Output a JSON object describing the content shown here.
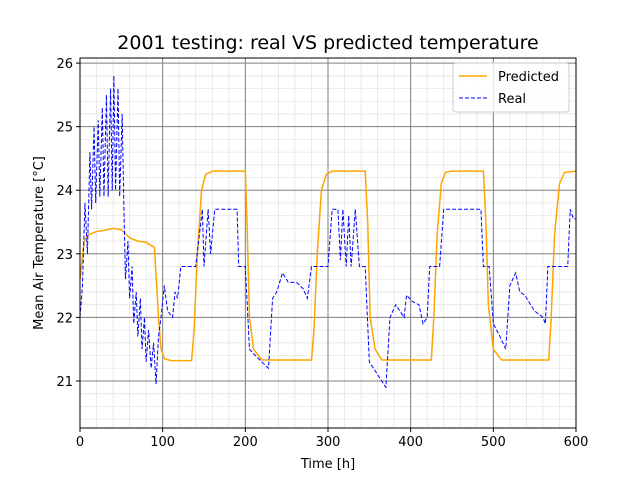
{
  "chart_data": {
    "type": "line",
    "title": "2001 testing: real VS predicted temperature",
    "x_label": "Time [h]",
    "y_label": "Mean Air Temperature [°C]",
    "xlim": [
      0,
      600
    ],
    "ylim": [
      20.26,
      26.08
    ],
    "xticks": [
      0,
      100,
      200,
      300,
      400,
      500,
      600
    ],
    "yticks": [
      21,
      22,
      23,
      24,
      25,
      26
    ],
    "grid": true,
    "minor_grid": true,
    "legend": "upper right",
    "series": [
      {
        "name": "Predicted",
        "color": "#ffa500",
        "dash": "solid",
        "x": [
          0,
          5,
          10,
          20,
          30,
          40,
          50,
          60,
          70,
          80,
          90,
          95,
          98,
          102,
          110,
          135,
          138,
          142,
          147,
          152,
          160,
          200,
          202,
          205,
          210,
          220,
          280,
          283,
          287,
          292,
          298,
          305,
          345,
          348,
          351,
          357,
          365,
          425,
          428,
          432,
          437,
          442,
          450,
          488,
          491,
          494,
          500,
          510,
          567,
          570,
          574,
          580,
          586,
          600
        ],
        "values": [
          22.6,
          23.2,
          23.3,
          23.35,
          23.37,
          23.4,
          23.38,
          23.25,
          23.2,
          23.18,
          23.1,
          22.0,
          21.5,
          21.35,
          21.32,
          21.32,
          21.8,
          23.0,
          24.0,
          24.25,
          24.3,
          24.3,
          23.5,
          22.0,
          21.5,
          21.33,
          21.33,
          21.8,
          23.0,
          24.0,
          24.25,
          24.3,
          24.3,
          23.5,
          22.0,
          21.5,
          21.33,
          21.33,
          22.0,
          23.3,
          24.1,
          24.28,
          24.3,
          24.3,
          23.5,
          22.2,
          21.5,
          21.33,
          21.33,
          22.0,
          23.3,
          24.1,
          24.28,
          24.3
        ]
      },
      {
        "name": "Real",
        "color": "#0000ff",
        "dash": "dashed",
        "x": [
          0,
          3,
          6,
          9,
          12,
          14,
          17,
          19,
          22,
          24,
          27,
          29,
          32,
          34,
          37,
          39,
          41,
          43,
          46,
          48,
          51,
          53,
          55,
          58,
          60,
          63,
          65,
          68,
          70,
          73,
          75,
          78,
          80,
          83,
          86,
          89,
          92,
          95,
          98,
          102,
          106,
          112,
          115,
          118,
          122,
          140,
          148,
          150,
          155,
          158,
          163,
          190,
          192,
          200,
          205,
          212,
          220,
          228,
          233,
          238,
          245,
          252,
          262,
          270,
          275,
          280,
          300,
          305,
          312,
          315,
          318,
          322,
          325,
          328,
          333,
          338,
          345,
          350,
          360,
          370,
          375,
          382,
          392,
          395,
          402,
          410,
          415,
          420,
          423,
          435,
          440,
          485,
          488,
          495,
          500,
          508,
          515,
          520,
          527,
          532,
          538,
          545,
          550,
          560,
          563,
          566,
          590,
          593,
          597,
          600
        ],
        "values": [
          22.0,
          22.5,
          23.8,
          23.0,
          24.6,
          23.7,
          25.0,
          23.8,
          25.1,
          23.9,
          25.3,
          23.9,
          25.5,
          23.9,
          25.6,
          24.0,
          25.8,
          24.0,
          25.6,
          23.9,
          25.2,
          23.8,
          22.6,
          23.2,
          22.3,
          22.8,
          21.9,
          22.4,
          21.7,
          22.3,
          21.5,
          22.0,
          21.3,
          21.8,
          21.2,
          21.6,
          20.95,
          21.7,
          22.0,
          22.5,
          22.1,
          22.0,
          22.4,
          22.3,
          22.8,
          22.8,
          23.7,
          22.8,
          23.7,
          23.0,
          23.7,
          23.7,
          22.8,
          22.8,
          21.5,
          21.4,
          21.3,
          21.2,
          22.3,
          22.4,
          22.7,
          22.55,
          22.55,
          22.45,
          22.3,
          22.8,
          22.8,
          23.7,
          23.7,
          22.9,
          23.7,
          22.8,
          23.6,
          22.8,
          23.7,
          22.8,
          22.8,
          21.3,
          21.1,
          20.9,
          22.0,
          22.2,
          22.0,
          22.35,
          22.25,
          22.2,
          21.9,
          22.0,
          22.8,
          22.8,
          23.7,
          23.7,
          22.8,
          22.8,
          21.9,
          21.7,
          21.5,
          22.5,
          22.7,
          22.4,
          22.35,
          22.2,
          22.1,
          22.0,
          21.9,
          22.8,
          22.8,
          23.7,
          23.55,
          23.55
        ]
      }
    ]
  }
}
